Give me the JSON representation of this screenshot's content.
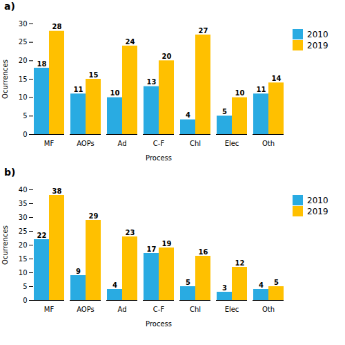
{
  "chart_data": [
    {
      "type": "bar",
      "title": "a)",
      "categories": [
        "MF",
        "AOPs",
        "Ad",
        "C-F",
        "Chl",
        "Elec",
        "Oth"
      ],
      "series": [
        {
          "name": "2010",
          "color": "#29ABE2",
          "values": [
            18,
            11,
            10,
            13,
            4,
            5,
            11
          ]
        },
        {
          "name": "2019",
          "color": "#FFC000",
          "values": [
            28,
            15,
            24,
            20,
            27,
            10,
            14
          ]
        }
      ],
      "xlabel": "Process",
      "ylabel": "Ocurrences",
      "ylim": [
        0,
        30
      ],
      "yticks": [
        0,
        5,
        10,
        15,
        20,
        25,
        30
      ],
      "data_labels": true,
      "legend": "right",
      "grid": false
    },
    {
      "type": "bar",
      "title": "b)",
      "categories": [
        "MF",
        "AOPs",
        "Ad",
        "C-F",
        "Chl",
        "Elec",
        "Oth"
      ],
      "series": [
        {
          "name": "2010",
          "color": "#29ABE2",
          "values": [
            22,
            9,
            4,
            17,
            5,
            3,
            4
          ]
        },
        {
          "name": "2019",
          "color": "#FFC000",
          "values": [
            38,
            29,
            23,
            19,
            16,
            12,
            5
          ]
        }
      ],
      "xlabel": "Process",
      "ylabel": "Ocurrences",
      "ylim": [
        0,
        40
      ],
      "yticks": [
        0,
        5,
        10,
        15,
        20,
        25,
        30,
        35,
        40
      ],
      "data_labels": true,
      "legend": "right",
      "grid": false
    }
  ]
}
